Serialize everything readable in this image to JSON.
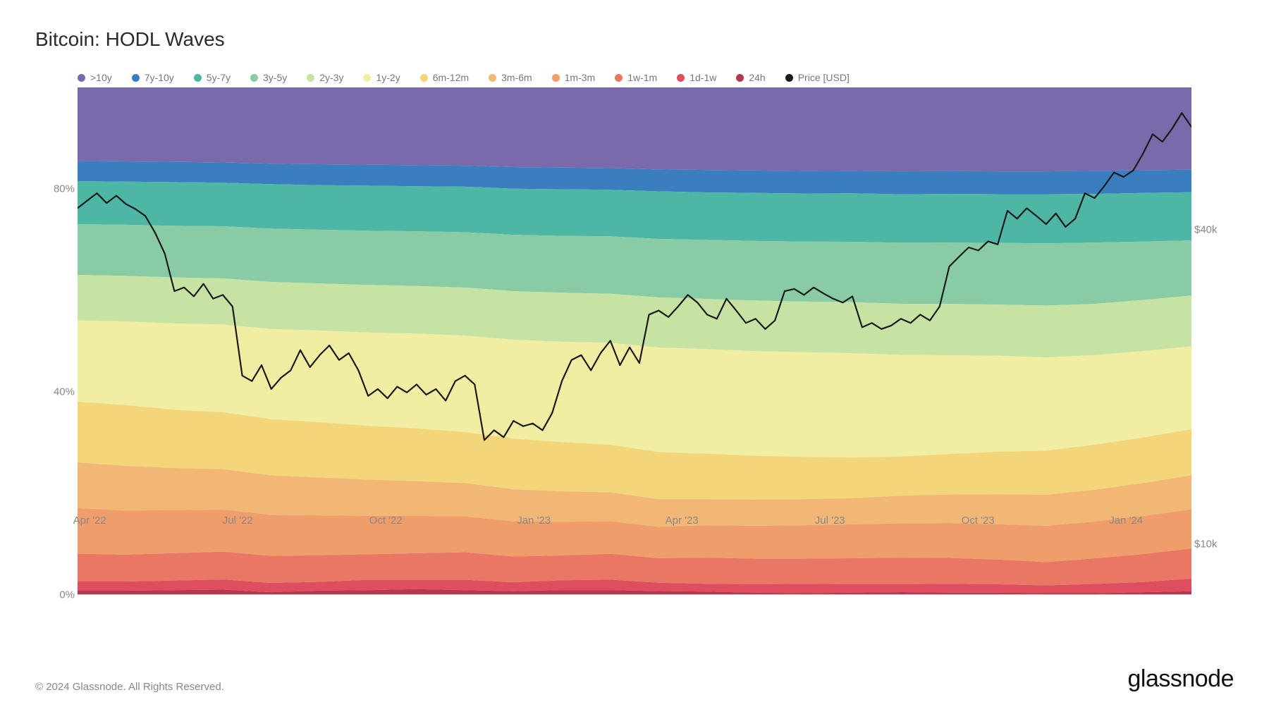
{
  "title": "Bitcoin: HODL Waves",
  "copyright": "© 2024 Glassnode. All Rights Reserved.",
  "brand": "glassnode",
  "chart": {
    "type": "stacked-area-with-line",
    "background_color": "#ffffff",
    "title_fontsize": 28,
    "title_color": "#2a2a2a",
    "axis_fontsize": 15,
    "axis_color": "#888888",
    "legend_fontsize": 14,
    "legend_color": "#777777",
    "x_axis": {
      "ticks": [
        "Apr '22",
        "Jul '22",
        "Oct '22",
        "Jan '23",
        "Apr '23",
        "Jul '23",
        "Oct '23",
        "Jan '24"
      ],
      "tick_positions_pct": [
        4,
        16.5,
        29,
        41.5,
        54,
        66.5,
        79,
        91.5
      ]
    },
    "y_axis_left": {
      "label_suffix": "%",
      "ticks": [
        0,
        40,
        80
      ],
      "range": [
        0,
        100
      ]
    },
    "y_axis_right": {
      "label_prefix": "$",
      "label_suffix": "k",
      "ticks": [
        10,
        40
      ],
      "scale": "log",
      "range_log": [
        8,
        75
      ]
    },
    "price_line": {
      "color": "#1a1a1a",
      "width": 2.2,
      "points": [
        [
          0,
          44000
        ],
        [
          1,
          45500
        ],
        [
          2,
          47000
        ],
        [
          3,
          45000
        ],
        [
          4,
          46500
        ],
        [
          5,
          44800
        ],
        [
          6,
          43800
        ],
        [
          7,
          42500
        ],
        [
          8,
          39500
        ],
        [
          9,
          36000
        ],
        [
          10,
          30500
        ],
        [
          11,
          31000
        ],
        [
          12,
          29800
        ],
        [
          13,
          31500
        ],
        [
          14,
          29500
        ],
        [
          15,
          30000
        ],
        [
          16,
          28500
        ],
        [
          17,
          21000
        ],
        [
          18,
          20500
        ],
        [
          19,
          22000
        ],
        [
          20,
          19800
        ],
        [
          21,
          20800
        ],
        [
          22,
          21500
        ],
        [
          23,
          23500
        ],
        [
          24,
          21800
        ],
        [
          25,
          23000
        ],
        [
          26,
          24000
        ],
        [
          27,
          22500
        ],
        [
          28,
          23200
        ],
        [
          29,
          21500
        ],
        [
          30,
          19200
        ],
        [
          31,
          19800
        ],
        [
          32,
          19000
        ],
        [
          33,
          20000
        ],
        [
          34,
          19500
        ],
        [
          35,
          20200
        ],
        [
          36,
          19300
        ],
        [
          37,
          19800
        ],
        [
          38,
          18800
        ],
        [
          39,
          20500
        ],
        [
          40,
          21000
        ],
        [
          41,
          20200
        ],
        [
          42,
          15800
        ],
        [
          43,
          16500
        ],
        [
          44,
          16000
        ],
        [
          45,
          17200
        ],
        [
          46,
          16800
        ],
        [
          47,
          17000
        ],
        [
          48,
          16500
        ],
        [
          49,
          17800
        ],
        [
          50,
          20500
        ],
        [
          51,
          22500
        ],
        [
          52,
          23000
        ],
        [
          53,
          21500
        ],
        [
          54,
          23200
        ],
        [
          55,
          24500
        ],
        [
          56,
          22000
        ],
        [
          57,
          23800
        ],
        [
          58,
          22200
        ],
        [
          59,
          27500
        ],
        [
          60,
          28000
        ],
        [
          61,
          27200
        ],
        [
          62,
          28500
        ],
        [
          63,
          30000
        ],
        [
          64,
          29000
        ],
        [
          65,
          27500
        ],
        [
          66,
          27000
        ],
        [
          67,
          29500
        ],
        [
          68,
          28000
        ],
        [
          69,
          26500
        ],
        [
          70,
          27000
        ],
        [
          71,
          25800
        ],
        [
          72,
          26800
        ],
        [
          73,
          30500
        ],
        [
          74,
          30800
        ],
        [
          75,
          30000
        ],
        [
          76,
          31000
        ],
        [
          77,
          30200
        ],
        [
          78,
          29500
        ],
        [
          79,
          29000
        ],
        [
          80,
          29800
        ],
        [
          81,
          26000
        ],
        [
          82,
          26500
        ],
        [
          83,
          25800
        ],
        [
          84,
          26200
        ],
        [
          85,
          27000
        ],
        [
          86,
          26500
        ],
        [
          87,
          27500
        ],
        [
          88,
          26800
        ],
        [
          89,
          28500
        ],
        [
          90,
          34000
        ],
        [
          91,
          35500
        ],
        [
          92,
          37000
        ],
        [
          93,
          36500
        ],
        [
          94,
          38000
        ],
        [
          95,
          37500
        ],
        [
          96,
          43500
        ],
        [
          97,
          42000
        ],
        [
          98,
          44000
        ],
        [
          99,
          42500
        ],
        [
          100,
          41000
        ],
        [
          101,
          43000
        ],
        [
          102,
          40500
        ],
        [
          103,
          42000
        ],
        [
          104,
          47000
        ],
        [
          105,
          46000
        ],
        [
          106,
          48500
        ],
        [
          107,
          51500
        ],
        [
          108,
          50500
        ],
        [
          109,
          52000
        ],
        [
          110,
          56000
        ],
        [
          111,
          61000
        ],
        [
          112,
          59000
        ],
        [
          113,
          62500
        ],
        [
          114,
          67000
        ],
        [
          115,
          63000
        ]
      ]
    },
    "bands": [
      {
        "name": ">10y",
        "color": "#7b6aab",
        "shares": [
          14.5,
          14.6,
          14.7,
          14.8,
          14.9,
          15.0,
          15.1,
          15.2,
          15.3,
          15.4,
          15.5,
          15.6,
          15.7,
          15.8,
          15.9,
          16.0,
          16.0,
          16.1,
          16.1,
          16.2,
          16.2,
          16.3,
          16.3,
          16.4
        ]
      },
      {
        "name": "7y-10y",
        "color": "#3b7ebf",
        "shares": [
          4.0,
          4.0,
          4.0,
          4.0,
          4.0,
          4.1,
          4.1,
          4.1,
          4.1,
          4.2,
          4.2,
          4.2,
          4.2,
          4.3,
          4.3,
          4.3,
          4.3,
          4.4,
          4.4,
          4.4,
          4.4,
          4.5,
          4.5,
          4.5
        ]
      },
      {
        "name": "5y-7y",
        "color": "#4db6a5",
        "shares": [
          8.5,
          8.5,
          8.6,
          8.6,
          8.7,
          8.7,
          8.8,
          8.8,
          8.9,
          8.9,
          9.0,
          9.0,
          9.1,
          9.1,
          9.2,
          9.2,
          9.3,
          9.3,
          9.4,
          9.4,
          9.5,
          9.5,
          9.6,
          9.6
        ]
      },
      {
        "name": "3y-5y",
        "color": "#88cba4",
        "shares": [
          10.0,
          10.1,
          10.2,
          10.3,
          10.4,
          10.5,
          10.6,
          10.7,
          10.8,
          10.9,
          11.0,
          11.1,
          11.2,
          11.3,
          11.4,
          11.5,
          11.6,
          11.7,
          11.8,
          11.9,
          12.0,
          12.0,
          11.5,
          11.0
        ]
      },
      {
        "name": "2y-3y",
        "color": "#c6e3a4",
        "shares": [
          9.0,
          9.0,
          9.1,
          9.1,
          9.2,
          9.2,
          9.3,
          9.3,
          9.4,
          9.4,
          9.5,
          9.5,
          9.6,
          9.6,
          9.7,
          9.7,
          9.8,
          9.8,
          9.9,
          9.9,
          10.0,
          10.0,
          10.1,
          10.1
        ]
      },
      {
        "name": "1y-2y",
        "color": "#f1eea3",
        "shares": [
          16.0,
          16.5,
          17.0,
          17.3,
          17.6,
          17.9,
          18.2,
          18.5,
          18.8,
          19.1,
          19.4,
          19.7,
          20.0,
          20.0,
          20.0,
          20.0,
          20.0,
          19.5,
          19.0,
          18.5,
          18.0,
          17.5,
          17.0,
          16.5
        ]
      },
      {
        "name": "6m-12m",
        "color": "#f4d67a",
        "shares": [
          12.0,
          12.0,
          11.5,
          11.2,
          11.0,
          10.8,
          10.5,
          10.3,
          10.0,
          9.8,
          9.5,
          9.2,
          9.0,
          8.7,
          8.4,
          8.1,
          7.8,
          7.5,
          7.8,
          8.2,
          8.5,
          8.8,
          9.0,
          9.2
        ]
      },
      {
        "name": "3m-6m",
        "color": "#f2b774",
        "shares": [
          9.0,
          8.8,
          8.3,
          8.0,
          7.7,
          7.4,
          7.1,
          6.8,
          6.5,
          6.2,
          5.9,
          5.6,
          5.3,
          5.0,
          5.0,
          5.0,
          5.0,
          5.3,
          5.5,
          5.8,
          6.0,
          6.2,
          6.5,
          6.8
        ]
      },
      {
        "name": "1m-3m",
        "color": "#f09d6c",
        "shares": [
          9.0,
          8.7,
          8.5,
          8.3,
          8.0,
          7.8,
          7.5,
          7.3,
          7.0,
          6.8,
          6.5,
          6.3,
          6.0,
          6.2,
          6.3,
          6.4,
          6.5,
          6.6,
          6.7,
          6.8,
          7.0,
          7.2,
          7.5,
          7.8
        ]
      },
      {
        "name": "1w-1m",
        "color": "#e87864",
        "shares": [
          5.5,
          5.3,
          5.4,
          5.5,
          5.3,
          5.2,
          5.0,
          5.2,
          5.4,
          5.0,
          4.8,
          5.0,
          4.7,
          5.0,
          4.9,
          4.8,
          5.0,
          5.1,
          5.0,
          4.8,
          4.5,
          5.0,
          5.5,
          6.0
        ]
      },
      {
        "name": "1d-1w",
        "color": "#de4e5e",
        "shares": [
          1.8,
          1.8,
          1.9,
          2.0,
          1.8,
          1.7,
          2.0,
          1.8,
          2.0,
          1.7,
          1.9,
          2.0,
          1.6,
          1.5,
          1.6,
          1.8,
          1.6,
          1.5,
          1.7,
          1.6,
          1.5,
          1.8,
          2.0,
          2.5
        ]
      },
      {
        "name": "24h",
        "color": "#b7374f",
        "shares": [
          0.7,
          0.7,
          0.8,
          0.9,
          0.4,
          0.7,
          0.8,
          1.0,
          0.8,
          0.6,
          0.8,
          0.8,
          0.6,
          0.5,
          0.3,
          0.2,
          0.3,
          0.4,
          0.3,
          0.3,
          0.2,
          0.2,
          0.4,
          0.6
        ]
      }
    ],
    "price_legend": {
      "label": "Price [USD]",
      "color": "#1a1a1a"
    }
  }
}
